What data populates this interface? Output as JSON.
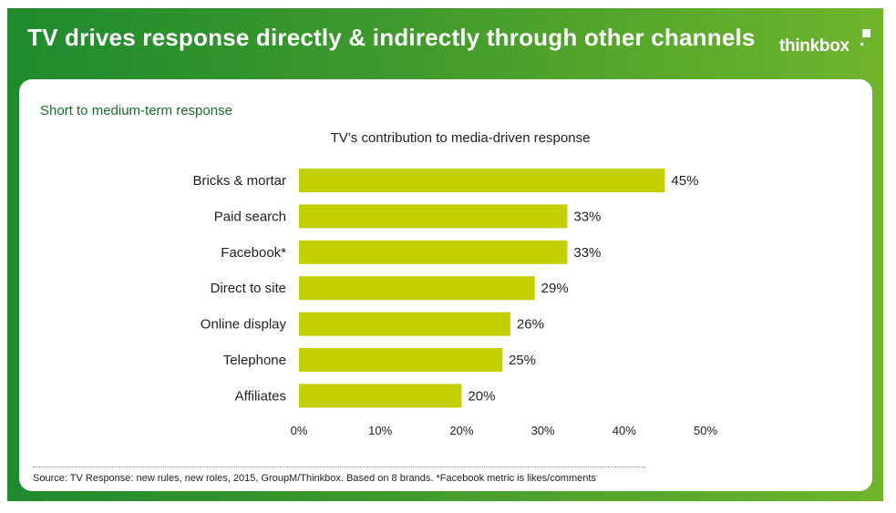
{
  "header": {
    "title": "TV drives response directly & indirectly through other channels",
    "logo_text": "thinkbox"
  },
  "panel": {
    "subtitle": "Short to medium-term response",
    "footnote": "Source: TV Response: new rules, new roles, 2015, GroupM/Thinkbox. Based on 8 brands. *Facebook metric is likes/comments"
  },
  "colors": {
    "bar": "#c2cf00",
    "brand_green": "#2e922e",
    "light_green": "#6fb52c"
  },
  "chart_data": {
    "type": "bar",
    "orientation": "horizontal",
    "title": "TV’s contribution to media-driven response",
    "categories": [
      "Bricks & mortar",
      "Paid search",
      "Facebook*",
      "Direct to site",
      "Online display",
      "Telephone",
      "Affiliates"
    ],
    "values": [
      45,
      33,
      33,
      29,
      26,
      25,
      20
    ],
    "value_labels": [
      "45%",
      "33%",
      "33%",
      "29%",
      "26%",
      "25%",
      "20%"
    ],
    "xlim": [
      0,
      50
    ],
    "xticks": [
      0,
      10,
      20,
      30,
      40,
      50
    ],
    "xtick_labels": [
      "0%",
      "10%",
      "20%",
      "30%",
      "40%",
      "50%"
    ],
    "xlabel": "",
    "ylabel": "",
    "grid": false,
    "legend": false
  }
}
